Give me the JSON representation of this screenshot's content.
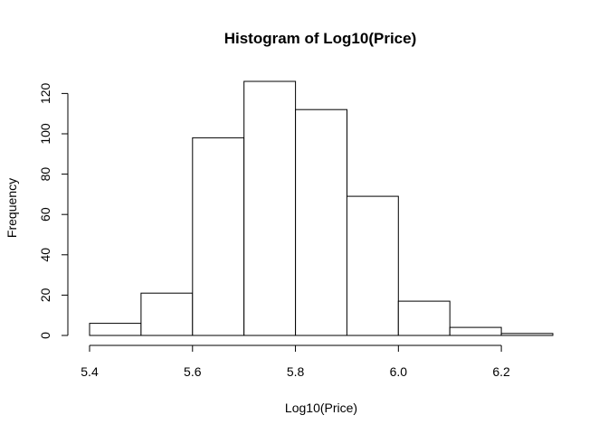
{
  "chart_data": {
    "type": "bar",
    "title": "Histogram of Log10(Price)",
    "xlabel": "Log10(Price)",
    "ylabel": "Frequency",
    "bins": [
      {
        "start": 5.4,
        "end": 5.5,
        "count": 6
      },
      {
        "start": 5.5,
        "end": 5.6,
        "count": 21
      },
      {
        "start": 5.6,
        "end": 5.7,
        "count": 98
      },
      {
        "start": 5.7,
        "end": 5.8,
        "count": 126
      },
      {
        "start": 5.8,
        "end": 5.9,
        "count": 112
      },
      {
        "start": 5.9,
        "end": 6.0,
        "count": 69
      },
      {
        "start": 6.0,
        "end": 6.1,
        "count": 17
      },
      {
        "start": 6.1,
        "end": 6.2,
        "count": 4
      },
      {
        "start": 6.2,
        "end": 6.3,
        "count": 1
      }
    ],
    "xlim": [
      5.4,
      6.3
    ],
    "ylim": [
      0,
      126
    ],
    "xticks": [
      5.4,
      5.6,
      5.8,
      6.0,
      6.2
    ],
    "xtick_labels": [
      "5.4",
      "5.6",
      "5.8",
      "6.0",
      "6.2"
    ],
    "yticks": [
      0,
      20,
      40,
      60,
      80,
      100,
      120
    ],
    "ytick_labels": [
      "0",
      "20",
      "40",
      "60",
      "80",
      "100",
      "120"
    ],
    "bar_fill": "#ffffff",
    "bar_stroke": "#000000"
  }
}
